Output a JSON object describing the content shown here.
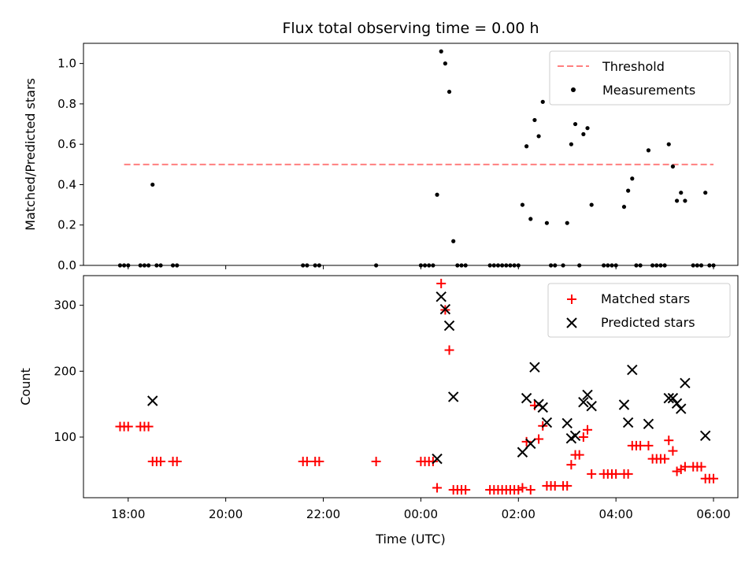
{
  "chart_data": [
    {
      "type": "scatter",
      "title": "Flux total observing time = 0.00 h",
      "xlabel": "",
      "ylabel": "Matched/Predicted stars",
      "ylim": [
        0,
        1.1
      ],
      "yticks": [
        0.0,
        0.2,
        0.4,
        0.6,
        0.8,
        1.0
      ],
      "ytick_labels": [
        "0.0",
        "0.2",
        "0.4",
        "0.6",
        "0.8",
        "1.0"
      ],
      "threshold": {
        "name": "Threshold",
        "value": 0.5,
        "x_start": "17:55",
        "x_end": "06:00",
        "color": "#ff7f7f"
      },
      "legend": {
        "position": "top-right",
        "entries": [
          "Threshold",
          "Measurements"
        ]
      },
      "series": [
        {
          "name": "Measurements",
          "marker": "dot",
          "color": "#000000",
          "points": [
            [
              "17:50",
              0
            ],
            [
              "17:55",
              0
            ],
            [
              "18:00",
              0
            ],
            [
              "18:15",
              0
            ],
            [
              "18:20",
              0
            ],
            [
              "18:25",
              0
            ],
            [
              "18:30",
              0.4
            ],
            [
              "18:35",
              0
            ],
            [
              "18:40",
              0
            ],
            [
              "18:55",
              0
            ],
            [
              "19:00",
              0
            ],
            [
              "21:35",
              0
            ],
            [
              "21:40",
              0
            ],
            [
              "21:50",
              0
            ],
            [
              "21:55",
              0
            ],
            [
              "23:05",
              0
            ],
            [
              "00:00",
              0
            ],
            [
              "00:05",
              0
            ],
            [
              "00:10",
              0
            ],
            [
              "00:15",
              0
            ],
            [
              "00:20",
              0.35
            ],
            [
              "00:25",
              1.06
            ],
            [
              "00:30",
              1.0
            ],
            [
              "00:35",
              0.86
            ],
            [
              "00:40",
              0.12
            ],
            [
              "00:45",
              0
            ],
            [
              "00:50",
              0
            ],
            [
              "00:55",
              0
            ],
            [
              "01:25",
              0
            ],
            [
              "01:30",
              0
            ],
            [
              "01:35",
              0
            ],
            [
              "01:40",
              0
            ],
            [
              "01:45",
              0
            ],
            [
              "01:50",
              0
            ],
            [
              "01:55",
              0
            ],
            [
              "02:00",
              0
            ],
            [
              "02:05",
              0.3
            ],
            [
              "02:10",
              0.59
            ],
            [
              "02:15",
              0.23
            ],
            [
              "02:20",
              0.72
            ],
            [
              "02:25",
              0.64
            ],
            [
              "02:30",
              0.81
            ],
            [
              "02:35",
              0.21
            ],
            [
              "02:40",
              0
            ],
            [
              "02:45",
              0
            ],
            [
              "02:55",
              0
            ],
            [
              "03:00",
              0.21
            ],
            [
              "03:05",
              0.6
            ],
            [
              "03:10",
              0.7
            ],
            [
              "03:15",
              0
            ],
            [
              "03:20",
              0.65
            ],
            [
              "03:25",
              0.68
            ],
            [
              "03:30",
              0.3
            ],
            [
              "03:45",
              0
            ],
            [
              "03:50",
              0
            ],
            [
              "03:55",
              0
            ],
            [
              "04:00",
              0
            ],
            [
              "04:10",
              0.29
            ],
            [
              "04:15",
              0.37
            ],
            [
              "04:20",
              0.43
            ],
            [
              "04:25",
              0
            ],
            [
              "04:30",
              0
            ],
            [
              "04:40",
              0.57
            ],
            [
              "04:45",
              0
            ],
            [
              "04:50",
              0
            ],
            [
              "04:55",
              0
            ],
            [
              "05:00",
              0
            ],
            [
              "05:05",
              0.6
            ],
            [
              "05:10",
              0.49
            ],
            [
              "05:15",
              0.32
            ],
            [
              "05:20",
              0.36
            ],
            [
              "05:25",
              0.32
            ],
            [
              "05:35",
              0
            ],
            [
              "05:40",
              0
            ],
            [
              "05:45",
              0
            ],
            [
              "05:50",
              0.36
            ],
            [
              "05:55",
              0
            ],
            [
              "06:00",
              0
            ]
          ]
        }
      ]
    },
    {
      "type": "scatter",
      "title": "",
      "xlabel": "Time (UTC)",
      "ylabel": "Count",
      "ylim": [
        8,
        345
      ],
      "yticks": [
        100,
        200,
        300
      ],
      "ytick_labels": [
        "100",
        "200",
        "300"
      ],
      "x_range": [
        "17:05",
        "06:30"
      ],
      "xticks": [
        "18:00",
        "20:00",
        "22:00",
        "00:00",
        "02:00",
        "04:00",
        "06:00"
      ],
      "xtick_labels": [
        "18:00",
        "20:00",
        "22:00",
        "00:00",
        "02:00",
        "04:00",
        "06:00"
      ],
      "legend": {
        "position": "top-right",
        "entries": [
          "Matched stars",
          "Predicted stars"
        ]
      },
      "series": [
        {
          "name": "Matched stars",
          "marker": "plus",
          "color": "#ff0000",
          "points": [
            [
              "17:50",
              116
            ],
            [
              "17:55",
              116
            ],
            [
              "18:00",
              116
            ],
            [
              "18:15",
              116
            ],
            [
              "18:20",
              116
            ],
            [
              "18:25",
              116
            ],
            [
              "18:30",
              63
            ],
            [
              "18:35",
              63
            ],
            [
              "18:40",
              63
            ],
            [
              "18:55",
              63
            ],
            [
              "19:00",
              63
            ],
            [
              "21:35",
              63
            ],
            [
              "21:40",
              63
            ],
            [
              "21:50",
              63
            ],
            [
              "21:55",
              63
            ],
            [
              "23:05",
              63
            ],
            [
              "00:00",
              63
            ],
            [
              "00:05",
              63
            ],
            [
              "00:10",
              63
            ],
            [
              "00:15",
              63
            ],
            [
              "00:20",
              23
            ],
            [
              "00:25",
              333
            ],
            [
              "00:30",
              293
            ],
            [
              "00:35",
              232
            ],
            [
              "00:40",
              20
            ],
            [
              "00:45",
              20
            ],
            [
              "00:50",
              20
            ],
            [
              "00:55",
              20
            ],
            [
              "01:25",
              20
            ],
            [
              "01:30",
              20
            ],
            [
              "01:35",
              20
            ],
            [
              "01:40",
              20
            ],
            [
              "01:45",
              20
            ],
            [
              "01:50",
              20
            ],
            [
              "01:55",
              20
            ],
            [
              "02:00",
              20
            ],
            [
              "02:05",
              23
            ],
            [
              "02:10",
              93
            ],
            [
              "02:15",
              20
            ],
            [
              "02:20",
              148
            ],
            [
              "02:25",
              97
            ],
            [
              "02:30",
              117
            ],
            [
              "02:35",
              26
            ],
            [
              "02:40",
              26
            ],
            [
              "02:45",
              26
            ],
            [
              "02:55",
              26
            ],
            [
              "03:00",
              26
            ],
            [
              "03:05",
              58
            ],
            [
              "03:10",
              73
            ],
            [
              "03:15",
              73
            ],
            [
              "03:20",
              100
            ],
            [
              "03:25",
              111
            ],
            [
              "03:30",
              44
            ],
            [
              "03:45",
              44
            ],
            [
              "03:50",
              44
            ],
            [
              "03:55",
              44
            ],
            [
              "04:00",
              44
            ],
            [
              "04:10",
              44
            ],
            [
              "04:15",
              44
            ],
            [
              "04:20",
              87
            ],
            [
              "04:25",
              87
            ],
            [
              "04:30",
              87
            ],
            [
              "04:40",
              87
            ],
            [
              "04:45",
              67
            ],
            [
              "04:50",
              67
            ],
            [
              "04:55",
              67
            ],
            [
              "05:00",
              67
            ],
            [
              "05:05",
              95
            ],
            [
              "05:10",
              79
            ],
            [
              "05:15",
              48
            ],
            [
              "05:20",
              51
            ],
            [
              "05:25",
              55
            ],
            [
              "05:35",
              55
            ],
            [
              "05:40",
              55
            ],
            [
              "05:45",
              55
            ],
            [
              "05:50",
              37
            ],
            [
              "05:55",
              37
            ],
            [
              "06:00",
              37
            ]
          ]
        },
        {
          "name": "Predicted stars",
          "marker": "x",
          "color": "#000000",
          "points": [
            [
              "18:30",
              155
            ],
            [
              "00:20",
              67
            ],
            [
              "00:25",
              313
            ],
            [
              "00:30",
              294
            ],
            [
              "00:35",
              269
            ],
            [
              "00:40",
              161
            ],
            [
              "02:05",
              77
            ],
            [
              "02:10",
              159
            ],
            [
              "02:15",
              90
            ],
            [
              "02:20",
              206
            ],
            [
              "02:25",
              150
            ],
            [
              "02:30",
              145
            ],
            [
              "02:35",
              122
            ],
            [
              "03:00",
              121
            ],
            [
              "03:05",
              98
            ],
            [
              "03:10",
              102
            ],
            [
              "03:20",
              153
            ],
            [
              "03:25",
              164
            ],
            [
              "03:30",
              147
            ],
            [
              "04:10",
              149
            ],
            [
              "04:15",
              122
            ],
            [
              "04:20",
              202
            ],
            [
              "04:40",
              120
            ],
            [
              "05:05",
              159
            ],
            [
              "05:10",
              159
            ],
            [
              "05:15",
              151
            ],
            [
              "05:20",
              143
            ],
            [
              "05:25",
              182
            ],
            [
              "05:50",
              102
            ]
          ]
        }
      ]
    }
  ]
}
